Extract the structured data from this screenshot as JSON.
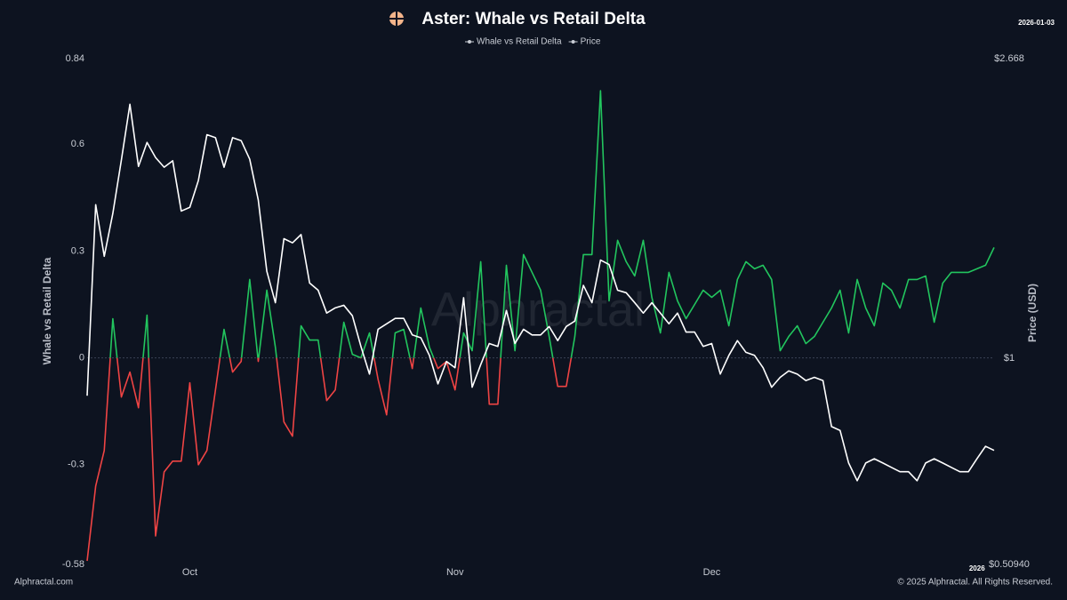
{
  "chart_data": {
    "type": "line",
    "title": "Aster: Whale vs Retail Delta",
    "date": "2026-01-03",
    "watermark": "Alphractal",
    "footer_left": "Alphractal.com",
    "footer_right": "© 2025 Alphractal. All Rights Reserved.",
    "y_label": "Whale vs Retail Delta",
    "y2_label": "Price (USD)",
    "categories": [
      null,
      null,
      null,
      null,
      null,
      null,
      null,
      null,
      null,
      null,
      null,
      null,
      "Oct",
      null,
      null,
      null,
      null,
      null,
      null,
      null,
      null,
      null,
      null,
      null,
      null,
      null,
      null,
      null,
      null,
      null,
      null,
      null,
      null,
      null,
      null,
      null,
      null,
      null,
      null,
      null,
      null,
      null,
      null,
      "Nov",
      null,
      null,
      null,
      null,
      null,
      null,
      null,
      null,
      null,
      null,
      null,
      null,
      null,
      null,
      null,
      null,
      null,
      null,
      null,
      null,
      null,
      null,
      null,
      null,
      null,
      null,
      null,
      null,
      null,
      "Dec",
      null,
      null,
      null,
      null,
      null,
      null,
      null,
      null,
      null,
      null,
      null,
      null,
      null,
      null,
      null,
      null,
      null,
      null,
      null,
      null,
      null,
      null,
      null,
      null,
      null,
      null,
      null,
      null,
      null,
      null,
      "2026",
      null,
      null
    ],
    "ylim": [
      -0.58,
      0.84
    ],
    "yticks": [
      -0.58,
      -0.3,
      0,
      0.3,
      0.6,
      0.84
    ],
    "y2lim": [
      0.5094,
      2.668
    ],
    "y2scale": "log",
    "y2ticks": [
      {
        "value": 0.5094,
        "label": "$0.50940"
      },
      {
        "value": 1,
        "label": "$1"
      },
      {
        "value": 2.668,
        "label": "$2.668"
      }
    ],
    "series": [
      {
        "name": "Whale vs Retail Delta",
        "color": "#22c55e",
        "negative_color": "#ef4444",
        "axis": "y",
        "values": [
          -0.57,
          -0.36,
          -0.26,
          0.11,
          -0.11,
          -0.04,
          -0.14,
          0.12,
          -0.5,
          -0.32,
          -0.29,
          -0.29,
          -0.07,
          -0.3,
          -0.26,
          -0.09,
          0.08,
          -0.04,
          -0.01,
          0.22,
          -0.01,
          0.19,
          0.03,
          -0.18,
          -0.22,
          0.09,
          0.05,
          0.05,
          -0.12,
          -0.09,
          0.1,
          0.01,
          0.0,
          0.07,
          -0.06,
          -0.16,
          0.07,
          0.08,
          -0.03,
          0.14,
          0.03,
          -0.03,
          -0.01,
          -0.09,
          0.07,
          0.02,
          0.27,
          -0.13,
          -0.13,
          0.26,
          0.02,
          0.29,
          0.24,
          0.19,
          0.06,
          -0.08,
          -0.08,
          0.06,
          0.29,
          0.29,
          0.75,
          0.16,
          0.33,
          0.27,
          0.23,
          0.33,
          0.17,
          0.07,
          0.24,
          0.16,
          0.11,
          0.15,
          0.19,
          0.17,
          0.19,
          0.09,
          0.22,
          0.27,
          0.25,
          0.26,
          0.22,
          0.02,
          0.06,
          0.09,
          0.04,
          0.06,
          0.1,
          0.14,
          0.19,
          0.07,
          0.22,
          0.14,
          0.09,
          0.21,
          0.19,
          0.14,
          0.22,
          0.22,
          0.23,
          0.1,
          0.21,
          0.24,
          0.24,
          0.24,
          0.25,
          0.26,
          0.31
        ]
      },
      {
        "name": "Price",
        "color": "#ffffff",
        "axis": "y2",
        "values": [
          0.885,
          1.654,
          1.397,
          1.607,
          1.914,
          2.298,
          1.875,
          2.028,
          1.93,
          1.87,
          1.91,
          1.62,
          1.64,
          1.79,
          2.08,
          2.06,
          1.87,
          2.06,
          2.04,
          1.92,
          1.68,
          1.33,
          1.2,
          1.48,
          1.46,
          1.5,
          1.28,
          1.25,
          1.16,
          1.18,
          1.19,
          1.15,
          1.04,
          0.95,
          1.1,
          1.12,
          1.14,
          1.14,
          1.08,
          1.07,
          1.01,
          0.92,
          0.99,
          0.97,
          1.22,
          0.91,
          0.98,
          1.05,
          1.04,
          1.17,
          1.05,
          1.1,
          1.08,
          1.08,
          1.11,
          1.06,
          1.11,
          1.13,
          1.27,
          1.2,
          1.38,
          1.36,
          1.25,
          1.24,
          1.2,
          1.16,
          1.2,
          1.16,
          1.12,
          1.16,
          1.09,
          1.09,
          1.04,
          1.05,
          0.95,
          1.01,
          1.06,
          1.02,
          1.01,
          0.97,
          0.91,
          0.94,
          0.96,
          0.95,
          0.93,
          0.94,
          0.93,
          0.8,
          0.79,
          0.71,
          0.67,
          0.71,
          0.72,
          0.71,
          0.7,
          0.69,
          0.69,
          0.67,
          0.71,
          0.72,
          0.71,
          0.7,
          0.69,
          0.69,
          0.72,
          0.75,
          0.74
        ]
      }
    ]
  }
}
